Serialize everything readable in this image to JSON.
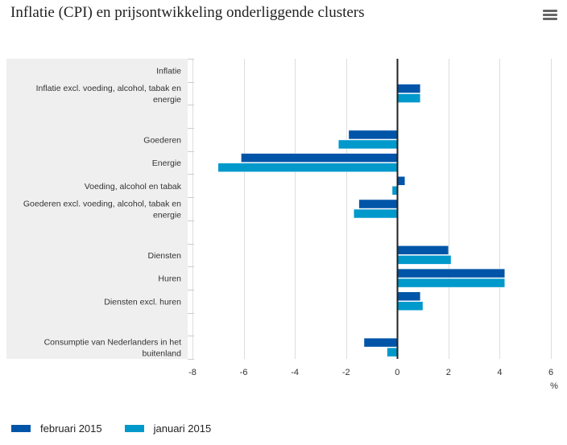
{
  "title": "Inflatie (CPI) en prijsontwikkeling onderliggende clusters",
  "menu_icon": "hamburger-menu-icon",
  "colors": {
    "series1": "#0055a8",
    "series2": "#0099cc",
    "band": "#efefef",
    "grid": "#dddddd",
    "axis": "#222222"
  },
  "chart_data": {
    "type": "bar",
    "orientation": "horizontal",
    "title": "Inflatie (CPI) en prijsontwikkeling onderliggende clusters",
    "categories": [
      "Inflatie",
      "Inflatie excl. voeding, alcohol, tabak en energie",
      "",
      "Goederen",
      "Energie",
      "Voeding, alcohol en tabak",
      "Goederen excl. voeding, alcohol, tabak en energie",
      "",
      "Diensten",
      "Huren",
      "Diensten excl. huren",
      "",
      "Consumptie van Nederlanders in het buitenland"
    ],
    "series": [
      {
        "name": "februari 2015",
        "values": [
          0.0,
          0.9,
          null,
          -1.9,
          -6.1,
          0.3,
          -1.5,
          null,
          2.0,
          4.2,
          0.9,
          null,
          -1.3
        ]
      },
      {
        "name": "januari 2015",
        "values": [
          null,
          0.9,
          null,
          -2.3,
          -7.0,
          -0.2,
          -1.7,
          null,
          2.1,
          4.2,
          1.0,
          null,
          -0.4
        ]
      }
    ],
    "xlim": [
      -8,
      6
    ],
    "xticks": [
      "-8",
      "-6",
      "-4",
      "-2",
      "0",
      "2",
      "4",
      "6"
    ],
    "xlabel": "%",
    "ylabel": "",
    "grid": true,
    "legend": "bottom-left"
  }
}
